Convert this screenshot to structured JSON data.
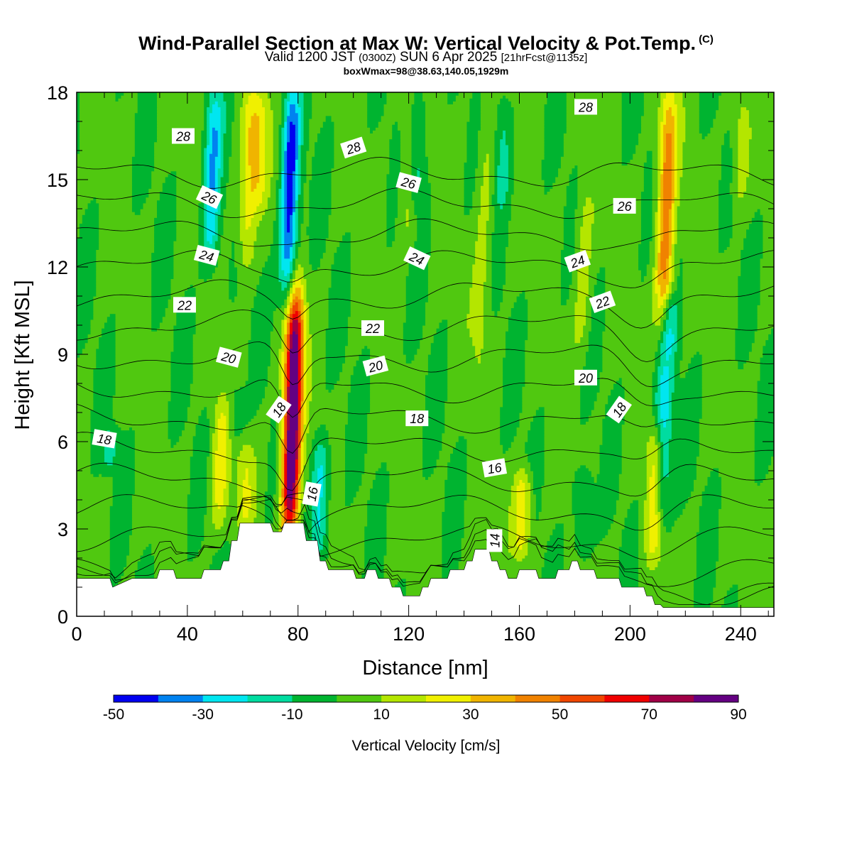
{
  "titles": {
    "main": "Wind-Parallel Section at Max W: Vertical Velocity & Pot.Temp.",
    "main_tag": "(C)",
    "valid_prefix": "Valid 1200 JST",
    "valid_utc": "(0300Z)",
    "valid_date": "SUN 6 Apr 2025",
    "valid_fcst": "[21hrFcst@1135z]",
    "boxwmax": "boxWmax=98@38.63,140.05,1929m"
  },
  "chart_data": {
    "type": "heatmap",
    "xlabel": "Distance [nm]",
    "ylabel": "Height [Kft MSL]",
    "xlim": [
      0,
      252
    ],
    "ylim": [
      0,
      18
    ],
    "x_ticks": [
      0,
      40,
      80,
      120,
      160,
      200,
      240
    ],
    "y_ticks": [
      0,
      3,
      6,
      9,
      12,
      15,
      18
    ],
    "colorbar": {
      "label": "Vertical Velocity [cm/s]",
      "tick_labels": [
        "-50",
        "-30",
        "-10",
        "10",
        "30",
        "50",
        "70",
        "90"
      ],
      "bin_edges": [
        -50,
        -40,
        -30,
        -20,
        -10,
        0,
        10,
        20,
        30,
        40,
        50,
        60,
        70,
        80,
        90
      ],
      "colors": [
        "#0000f0",
        "#0082f0",
        "#00e6f0",
        "#00dca0",
        "#00b430",
        "#50c810",
        "#b4e600",
        "#f0f000",
        "#f0b400",
        "#f08200",
        "#f04600",
        "#f00000",
        "#a00046",
        "#640082"
      ]
    },
    "background_value": 2,
    "w_features": [
      {
        "x": 78,
        "z0": 2.8,
        "z1": 11,
        "peak": 98
      },
      {
        "x": 213,
        "z0": 10,
        "z1": 18,
        "peak": 45
      },
      {
        "x": 52,
        "z0": 3,
        "z1": 7.5,
        "peak": 22
      },
      {
        "x": 61,
        "z0": 3,
        "z1": 6,
        "peak": 16
      },
      {
        "x": 209,
        "z0": 2,
        "z1": 6.5,
        "peak": 28
      },
      {
        "x": 161,
        "z0": 2,
        "z1": 5,
        "peak": 28
      },
      {
        "x": 62,
        "z0": 12,
        "z1": 18,
        "peak": 25
      },
      {
        "x": 66,
        "z0": 14,
        "z1": 18,
        "peak": 22
      },
      {
        "x": 120,
        "z0": 13,
        "z1": 18,
        "peak": 15
      },
      {
        "x": 147,
        "z0": 8,
        "z1": 18,
        "peak": 12
      },
      {
        "x": 183,
        "z0": 9,
        "z1": 15,
        "peak": 14
      },
      {
        "x": 240,
        "z0": 14,
        "z1": 18,
        "peak": 14
      },
      {
        "x": 77,
        "z0": 11,
        "z1": 18,
        "peak": -48
      },
      {
        "x": 49,
        "z0": 12,
        "z1": 18,
        "peak": -32
      },
      {
        "x": 88,
        "z0": 2,
        "z1": 6,
        "peak": -28
      },
      {
        "x": 212,
        "z0": 3,
        "z1": 9,
        "peak": -30
      },
      {
        "x": 214,
        "z0": 9,
        "z1": 11,
        "peak": -22
      },
      {
        "x": 123,
        "z0": 14,
        "z1": 18,
        "peak": -20
      },
      {
        "x": 154,
        "z0": 14,
        "z1": 18,
        "peak": -16
      },
      {
        "x": 183,
        "z0": 2,
        "z1": 5,
        "peak": -18
      },
      {
        "x": 12,
        "z0": 5,
        "z1": 6.5,
        "peak": -14
      },
      {
        "x": 57,
        "z0": 6,
        "z1": 8,
        "peak": -12
      }
    ],
    "terrain": {
      "x": [
        0,
        4,
        12,
        13,
        20,
        29,
        30,
        35,
        36,
        45,
        46,
        52,
        53,
        55,
        56,
        58,
        59,
        70,
        71,
        74,
        75,
        82,
        83,
        87,
        88,
        90,
        91,
        100,
        101,
        104,
        105,
        108,
        109,
        113,
        114,
        117,
        118,
        124,
        125,
        127,
        128,
        134,
        135,
        140,
        141,
        143,
        144,
        149,
        150,
        152,
        153,
        155,
        156,
        159,
        160,
        166,
        167,
        173,
        174,
        178,
        179,
        181,
        182,
        187,
        188,
        196,
        197,
        205,
        206,
        208,
        209,
        211,
        212,
        252
      ],
      "z": [
        1.3,
        1.3,
        1.3,
        1.0,
        1.3,
        1.3,
        1.6,
        1.6,
        1.3,
        1.3,
        1.6,
        1.6,
        1.9,
        1.9,
        2.6,
        2.6,
        3.2,
        3.2,
        2.9,
        2.9,
        3.2,
        3.2,
        2.6,
        2.6,
        1.9,
        1.9,
        1.6,
        1.6,
        1.3,
        1.3,
        1.6,
        1.6,
        1.3,
        1.3,
        1.0,
        1.0,
        0.7,
        0.7,
        1.0,
        1.0,
        1.3,
        1.3,
        1.6,
        1.6,
        1.9,
        1.9,
        2.3,
        2.3,
        1.9,
        1.9,
        1.6,
        1.6,
        1.3,
        1.3,
        1.6,
        1.6,
        1.3,
        1.3,
        1.6,
        1.6,
        1.9,
        1.9,
        1.6,
        1.6,
        1.3,
        1.3,
        1.0,
        1.0,
        0.7,
        0.7,
        0.4,
        0.4,
        0.3,
        0.3
      ]
    },
    "theta_levels": [
      14,
      15,
      16,
      17,
      18,
      19,
      20,
      21,
      22,
      23,
      24,
      25,
      26,
      27,
      28,
      29
    ],
    "theta_labels": [
      {
        "text": "28",
        "x": 38.5,
        "z": 16.5,
        "angle": 0
      },
      {
        "text": "28",
        "x": 100,
        "z": 16.1,
        "angle": -18
      },
      {
        "text": "28",
        "x": 184,
        "z": 17.5,
        "angle": 0
      },
      {
        "text": "26",
        "x": 48,
        "z": 14.4,
        "angle": 25
      },
      {
        "text": "26",
        "x": 120,
        "z": 14.9,
        "angle": 15
      },
      {
        "text": "26",
        "x": 198,
        "z": 14.1,
        "angle": 0
      },
      {
        "text": "24",
        "x": 47,
        "z": 12.4,
        "angle": 15
      },
      {
        "text": "24",
        "x": 123,
        "z": 12.3,
        "angle": 25
      },
      {
        "text": "24",
        "x": 181,
        "z": 12.2,
        "angle": -20
      },
      {
        "text": "22",
        "x": 39,
        "z": 10.7,
        "angle": 0
      },
      {
        "text": "22",
        "x": 107,
        "z": 9.9,
        "angle": 0
      },
      {
        "text": "22",
        "x": 190,
        "z": 10.8,
        "angle": -20
      },
      {
        "text": "20",
        "x": 55,
        "z": 8.9,
        "angle": 15
      },
      {
        "text": "20",
        "x": 108,
        "z": 8.6,
        "angle": -15
      },
      {
        "text": "20",
        "x": 184,
        "z": 8.2,
        "angle": 0
      },
      {
        "text": "18",
        "x": 10,
        "z": 6.1,
        "angle": 10
      },
      {
        "text": "18",
        "x": 73,
        "z": 7.1,
        "angle": -55
      },
      {
        "text": "18",
        "x": 123,
        "z": 6.8,
        "angle": 0
      },
      {
        "text": "18",
        "x": 196,
        "z": 7.1,
        "angle": -55
      },
      {
        "text": "16",
        "x": 85,
        "z": 4.2,
        "angle": -80
      },
      {
        "text": "16",
        "x": 151,
        "z": 5.1,
        "angle": -10
      },
      {
        "text": "14",
        "x": 151,
        "z": 2.6,
        "angle": -90
      }
    ]
  }
}
